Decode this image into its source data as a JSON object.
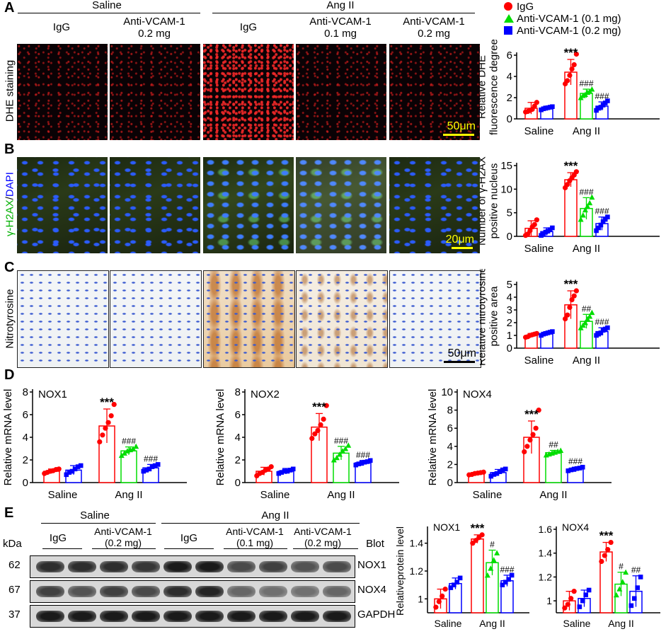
{
  "panel_letters": {
    "A": "A",
    "B": "B",
    "C": "C",
    "D": "D",
    "E": "E"
  },
  "header_A": {
    "saline": "Saline",
    "angII": "Ang II"
  },
  "columns_A": [
    "IgG",
    "Anti-VCAM-1\n0.2 mg",
    "IgG",
    "Anti-VCAM-1\n0.1 mg",
    "Anti-VCAM-1\n0.2 mg"
  ],
  "row_labels": {
    "dhe": "DHE staining",
    "gh2ax_green": "γ-H2AX",
    "gh2ax_sep": "/",
    "gh2ax_blue": "DAPI",
    "nitro": "Nitrotyrosine"
  },
  "scale_bars": {
    "A": "50μm",
    "B": "20μm",
    "C": "50μm"
  },
  "legend": [
    {
      "label": "IgG",
      "color": "#ff0000",
      "shape": "circle-icon"
    },
    {
      "label": "Anti-VCAM-1 (0.1 mg)",
      "color": "#00dd00",
      "shape": "triangle-icon"
    },
    {
      "label": "Anti-VCAM-1 (0.2 mg)",
      "color": "#0000ff",
      "shape": "square-icon"
    }
  ],
  "colors": {
    "igg": "#ff0000",
    "low": "#00dd00",
    "high": "#0000ff",
    "scale": "#ffff00"
  },
  "panel_E": {
    "saline": "Saline",
    "angII": "Ang II",
    "kda": "kDa",
    "blot": "Blot",
    "lanes": [
      "IgG",
      "Anti-VCAM-1\n(0.2 mg)",
      "IgG",
      "Anti-VCAM-1\n(0.1 mg)",
      "Anti-VCAM-1\n(0.2 mg)"
    ],
    "rows": [
      {
        "kda": "62",
        "name": "NOX1"
      },
      {
        "kda": "67",
        "name": "NOX4"
      },
      {
        "kda": "37",
        "name": "GAPDH"
      }
    ]
  },
  "chart_data": [
    {
      "id": "A-chart",
      "type": "bar",
      "title": "",
      "ylabel": "Relative DHE\nfluorescence degree",
      "ylim": [
        0,
        6
      ],
      "yticks": [
        0,
        2,
        4,
        6
      ],
      "groups": [
        "Saline",
        "Ang II"
      ],
      "series": [
        {
          "name": "IgG",
          "group": "Saline",
          "mean": 1.0,
          "err": 0.55,
          "points": [
            0.65,
            0.7,
            0.8,
            0.9,
            1.2,
            1.55
          ],
          "annotation": ""
        },
        {
          "name": "Anti-VCAM-1 (0.2 mg)",
          "group": "Saline",
          "mean": 1.0,
          "err": 0.2,
          "points": [
            0.85,
            0.95,
            1.0,
            1.05,
            1.1,
            1.15
          ],
          "annotation": ""
        },
        {
          "name": "IgG",
          "group": "Ang II",
          "mean": 4.4,
          "err": 1.2,
          "points": [
            3.3,
            3.6,
            4.1,
            4.7,
            5.1,
            6.1
          ],
          "annotation": "***"
        },
        {
          "name": "Anti-VCAM-1 (0.1 mg)",
          "group": "Ang II",
          "mean": 2.4,
          "err": 0.4,
          "points": [
            2.0,
            2.2,
            2.3,
            2.5,
            2.6,
            2.8
          ],
          "annotation": "###"
        },
        {
          "name": "Anti-VCAM-1 (0.2 mg)",
          "group": "Ang II",
          "mean": 1.2,
          "err": 0.4,
          "points": [
            0.8,
            1.0,
            1.1,
            1.3,
            1.5,
            1.7
          ],
          "annotation": "###"
        }
      ]
    },
    {
      "id": "B-chart",
      "type": "bar",
      "title": "",
      "ylabel": "Number of γ-H2AX\npositive nucleus",
      "ylim": [
        0,
        15
      ],
      "yticks": [
        0,
        5,
        10,
        15
      ],
      "groups": [
        "Saline",
        "Ang II"
      ],
      "series": [
        {
          "name": "IgG",
          "group": "Saline",
          "mean": 1.7,
          "err": 1.6,
          "points": [
            0.2,
            0.5,
            1.2,
            2.0,
            2.5,
            3.5
          ],
          "annotation": ""
        },
        {
          "name": "Anti-VCAM-1 (0.2 mg)",
          "group": "Saline",
          "mean": 1.0,
          "err": 0.8,
          "points": [
            0.2,
            0.6,
            0.9,
            1.1,
            1.4,
            1.8
          ],
          "annotation": ""
        },
        {
          "name": "IgG",
          "group": "Ang II",
          "mean": 12.0,
          "err": 1.5,
          "points": [
            10.3,
            11.0,
            11.8,
            12.4,
            13.0,
            13.7
          ],
          "annotation": "***"
        },
        {
          "name": "Anti-VCAM-1 (0.1 mg)",
          "group": "Ang II",
          "mean": 5.9,
          "err": 2.3,
          "points": [
            3.6,
            4.5,
            5.6,
            6.4,
            7.1,
            8.3
          ],
          "annotation": "###"
        },
        {
          "name": "Anti-VCAM-1 (0.2 mg)",
          "group": "Ang II",
          "mean": 2.7,
          "err": 1.4,
          "points": [
            1.2,
            1.8,
            2.4,
            3.1,
            3.6,
            4.1
          ],
          "annotation": "###"
        }
      ]
    },
    {
      "id": "C-chart",
      "type": "bar",
      "title": "",
      "ylabel": "Relative nitrotyrosine\npositive area",
      "ylim": [
        0,
        5
      ],
      "yticks": [
        0,
        1,
        2,
        3,
        4,
        5
      ],
      "groups": [
        "Saline",
        "Ang II"
      ],
      "series": [
        {
          "name": "IgG",
          "group": "Saline",
          "mean": 1.0,
          "err": 0.15,
          "points": [
            0.85,
            0.9,
            1.0,
            1.05,
            1.1,
            1.15
          ],
          "annotation": ""
        },
        {
          "name": "Anti-VCAM-1 (0.2 mg)",
          "group": "Saline",
          "mean": 1.15,
          "err": 0.15,
          "points": [
            1.0,
            1.1,
            1.15,
            1.2,
            1.25,
            1.3
          ],
          "annotation": ""
        },
        {
          "name": "IgG",
          "group": "Ang II",
          "mean": 3.4,
          "err": 1.1,
          "points": [
            2.3,
            2.6,
            3.2,
            3.8,
            4.1,
            4.5
          ],
          "annotation": "***"
        },
        {
          "name": "Anti-VCAM-1 (0.1 mg)",
          "group": "Ang II",
          "mean": 2.1,
          "err": 0.55,
          "points": [
            1.6,
            1.8,
            2.0,
            2.3,
            2.5,
            2.8
          ],
          "annotation": "##"
        },
        {
          "name": "Anti-VCAM-1 (0.2 mg)",
          "group": "Ang II",
          "mean": 1.3,
          "err": 0.3,
          "points": [
            1.0,
            1.1,
            1.2,
            1.4,
            1.5,
            1.6
          ],
          "annotation": "###"
        }
      ]
    },
    {
      "id": "D1-chart",
      "type": "bar",
      "title": "NOX1",
      "ylabel": "Relative mRNA level",
      "ylim": [
        0,
        8
      ],
      "yticks": [
        0,
        2,
        4,
        6,
        8
      ],
      "groups": [
        "Saline",
        "Ang II"
      ],
      "series": [
        {
          "name": "IgG",
          "group": "Saline",
          "mean": 1.0,
          "err": 0.2,
          "points": [
            0.8,
            0.9,
            1.0,
            1.05,
            1.15,
            1.2
          ],
          "annotation": ""
        },
        {
          "name": "Anti-VCAM-1 (0.2 mg)",
          "group": "Saline",
          "mean": 1.1,
          "err": 0.4,
          "points": [
            0.7,
            0.9,
            1.0,
            1.2,
            1.4,
            1.5
          ],
          "annotation": ""
        },
        {
          "name": "IgG",
          "group": "Ang II",
          "mean": 5.0,
          "err": 1.5,
          "points": [
            3.6,
            4.2,
            4.8,
            5.3,
            5.9,
            6.9
          ],
          "annotation": "***"
        },
        {
          "name": "Anti-VCAM-1 (0.1 mg)",
          "group": "Ang II",
          "mean": 2.8,
          "err": 0.35,
          "points": [
            2.4,
            2.6,
            2.8,
            2.9,
            3.0,
            3.2
          ],
          "annotation": "###"
        },
        {
          "name": "Anti-VCAM-1 (0.2 mg)",
          "group": "Ang II",
          "mean": 1.3,
          "err": 0.3,
          "points": [
            1.0,
            1.1,
            1.2,
            1.4,
            1.5,
            1.6
          ],
          "annotation": "###"
        }
      ]
    },
    {
      "id": "D2-chart",
      "type": "bar",
      "title": "NOX2",
      "ylabel": "Relative mRNA level",
      "ylim": [
        0,
        8
      ],
      "yticks": [
        0,
        2,
        4,
        6,
        8
      ],
      "groups": [
        "Saline",
        "Ang II"
      ],
      "series": [
        {
          "name": "IgG",
          "group": "Saline",
          "mean": 1.0,
          "err": 0.35,
          "points": [
            0.6,
            0.8,
            0.9,
            1.1,
            1.2,
            1.4
          ],
          "annotation": ""
        },
        {
          "name": "Anti-VCAM-1 (0.2 mg)",
          "group": "Saline",
          "mean": 1.0,
          "err": 0.25,
          "points": [
            0.8,
            0.9,
            1.0,
            1.0,
            1.1,
            1.2
          ],
          "annotation": ""
        },
        {
          "name": "IgG",
          "group": "Ang II",
          "mean": 4.9,
          "err": 1.2,
          "points": [
            3.9,
            4.3,
            4.6,
            5.1,
            5.6,
            6.8
          ],
          "annotation": "***"
        },
        {
          "name": "Anti-VCAM-1 (0.1 mg)",
          "group": "Ang II",
          "mean": 2.6,
          "err": 0.6,
          "points": [
            2.0,
            2.2,
            2.5,
            2.8,
            3.0,
            3.3
          ],
          "annotation": "###"
        },
        {
          "name": "Anti-VCAM-1 (0.2 mg)",
          "group": "Ang II",
          "mean": 1.75,
          "err": 0.2,
          "points": [
            1.55,
            1.65,
            1.7,
            1.8,
            1.85,
            1.95
          ],
          "annotation": "###"
        }
      ]
    },
    {
      "id": "D3-chart",
      "type": "bar",
      "title": "NOX4",
      "ylabel": "Relative mRNA level",
      "ylim": [
        0,
        10
      ],
      "yticks": [
        0,
        2,
        4,
        6,
        8,
        10
      ],
      "groups": [
        "Saline",
        "Ang II"
      ],
      "series": [
        {
          "name": "IgG",
          "group": "Saline",
          "mean": 1.0,
          "err": 0.15,
          "points": [
            0.85,
            0.9,
            1.0,
            1.05,
            1.1,
            1.15
          ],
          "annotation": ""
        },
        {
          "name": "Anti-VCAM-1 (0.2 mg)",
          "group": "Saline",
          "mean": 1.1,
          "err": 0.35,
          "points": [
            0.7,
            0.9,
            1.0,
            1.2,
            1.4,
            1.5
          ],
          "annotation": ""
        },
        {
          "name": "IgG",
          "group": "Ang II",
          "mean": 5.0,
          "err": 1.8,
          "points": [
            3.4,
            4.0,
            4.7,
            5.3,
            6.0,
            8.0
          ],
          "annotation": "***"
        },
        {
          "name": "Anti-VCAM-1 (0.1 mg)",
          "group": "Ang II",
          "mean": 3.3,
          "err": 0.25,
          "points": [
            3.05,
            3.15,
            3.25,
            3.35,
            3.45,
            3.55
          ],
          "annotation": "##"
        },
        {
          "name": "Anti-VCAM-1 (0.2 mg)",
          "group": "Ang II",
          "mean": 1.5,
          "err": 0.2,
          "points": [
            1.3,
            1.4,
            1.45,
            1.55,
            1.6,
            1.7
          ],
          "annotation": "###"
        }
      ]
    },
    {
      "id": "E1-chart",
      "type": "bar",
      "title": "NOX1",
      "ylabel": "Relativeprotein level",
      "ylim": [
        0.9,
        1.5
      ],
      "yticks": [
        1.0,
        1.2,
        1.4
      ],
      "groups": [
        "Saline",
        "Ang II"
      ],
      "series": [
        {
          "name": "IgG",
          "group": "Saline",
          "mean": 1.0,
          "err": 0.07,
          "points": [
            0.94,
            0.98,
            1.02,
            1.07
          ],
          "annotation": ""
        },
        {
          "name": "Anti-VCAM-1 (0.2 mg)",
          "group": "Saline",
          "mean": 1.11,
          "err": 0.04,
          "points": [
            1.08,
            1.1,
            1.12,
            1.15
          ],
          "annotation": ""
        },
        {
          "name": "IgG",
          "group": "Ang II",
          "mean": 1.43,
          "err": 0.03,
          "points": [
            1.4,
            1.42,
            1.44,
            1.46
          ],
          "annotation": "***"
        },
        {
          "name": "Anti-VCAM-1 (0.1 mg)",
          "group": "Ang II",
          "mean": 1.26,
          "err": 0.09,
          "points": [
            1.17,
            1.22,
            1.28,
            1.33
          ],
          "annotation": "#"
        },
        {
          "name": "Anti-VCAM-1 (0.2 mg)",
          "group": "Ang II",
          "mean": 1.13,
          "err": 0.04,
          "points": [
            1.1,
            1.12,
            1.14,
            1.17
          ],
          "annotation": "###"
        }
      ]
    },
    {
      "id": "E2-chart",
      "type": "bar",
      "title": "NOX4",
      "ylabel": "",
      "ylim": [
        0.9,
        1.6
      ],
      "yticks": [
        1.0,
        1.2,
        1.4,
        1.6
      ],
      "groups": [
        "Saline",
        "Ang II"
      ],
      "series": [
        {
          "name": "IgG",
          "group": "Saline",
          "mean": 1.0,
          "err": 0.08,
          "points": [
            0.94,
            0.97,
            1.02,
            1.08
          ],
          "annotation": ""
        },
        {
          "name": "Anti-VCAM-1 (0.2 mg)",
          "group": "Saline",
          "mean": 1.02,
          "err": 0.07,
          "points": [
            0.95,
            1.0,
            1.05,
            1.09
          ],
          "annotation": ""
        },
        {
          "name": "IgG",
          "group": "Ang II",
          "mean": 1.41,
          "err": 0.08,
          "points": [
            1.33,
            1.38,
            1.43,
            1.49
          ],
          "annotation": "***"
        },
        {
          "name": "Anti-VCAM-1 (0.1 mg)",
          "group": "Ang II",
          "mean": 1.14,
          "err": 0.1,
          "points": [
            1.05,
            1.1,
            1.16,
            1.24
          ],
          "annotation": "#"
        },
        {
          "name": "Anti-VCAM-1 (0.2 mg)",
          "group": "Ang II",
          "mean": 1.08,
          "err": 0.13,
          "points": [
            0.96,
            1.02,
            1.11,
            1.2
          ],
          "annotation": "##"
        }
      ]
    }
  ]
}
